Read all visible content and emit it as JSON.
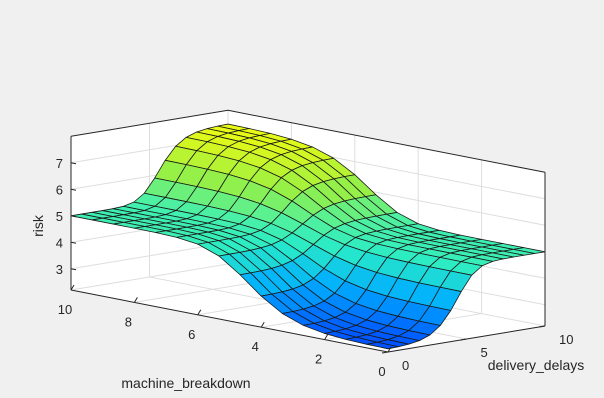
{
  "chart_data": {
    "type": "surface",
    "title": "",
    "xlabel": "delivery_delays",
    "ylabel": "machine_breakdown",
    "zlabel": "risk",
    "xlim": [
      0,
      10
    ],
    "ylim": [
      0,
      10
    ],
    "zlim": [
      2.2,
      8
    ],
    "x_ticks": [
      0,
      5,
      10
    ],
    "y_ticks": [
      0,
      2,
      4,
      6,
      8,
      10
    ],
    "z_ticks": [
      3,
      4,
      5,
      6,
      7
    ],
    "grid": true,
    "colormap": "jet-like (blue → cyan → green → yellow)",
    "baseline_risk": 5.0,
    "corner_values": [
      {
        "machine_breakdown": 10,
        "delivery_delays": 10,
        "risk": 7.5
      },
      {
        "machine_breakdown": 0,
        "delivery_delays": 0,
        "risk": 2.3
      },
      {
        "machine_breakdown": 10,
        "delivery_delays": 0,
        "risk": 5.0
      },
      {
        "machine_breakdown": 0,
        "delivery_delays": 10,
        "risk": 5.0
      }
    ]
  },
  "colors": {
    "background": "#f0f0f0",
    "axes_face": "#ffffff",
    "grid": "#dedede",
    "axis": "#262626",
    "edge": "#1a1a1a"
  }
}
